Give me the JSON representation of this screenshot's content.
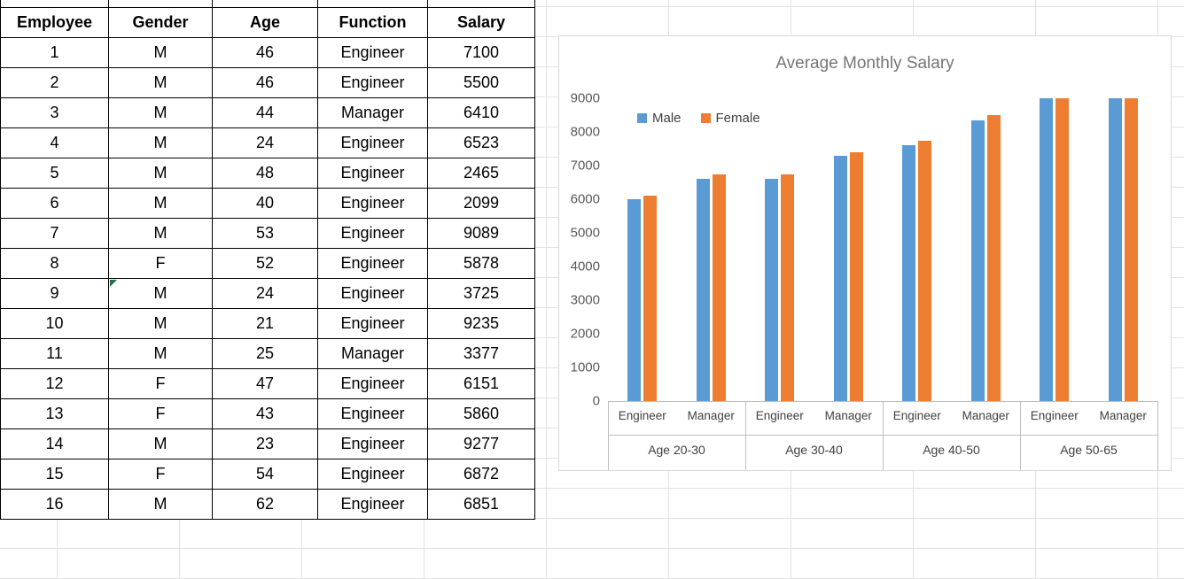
{
  "table": {
    "headers": [
      "Employee",
      "Gender",
      "Age",
      "Function",
      "Salary"
    ],
    "rows": [
      [
        "1",
        "M",
        "46",
        "Engineer",
        "7100"
      ],
      [
        "2",
        "M",
        "46",
        "Engineer",
        "5500"
      ],
      [
        "3",
        "M",
        "44",
        "Manager",
        "6410"
      ],
      [
        "4",
        "M",
        "24",
        "Engineer",
        "6523"
      ],
      [
        "5",
        "M",
        "48",
        "Engineer",
        "2465"
      ],
      [
        "6",
        "M",
        "40",
        "Engineer",
        "2099"
      ],
      [
        "7",
        "M",
        "53",
        "Engineer",
        "9089"
      ],
      [
        "8",
        "F",
        "52",
        "Engineer",
        "5878"
      ],
      [
        "9",
        "M",
        "24",
        "Engineer",
        "3725"
      ],
      [
        "10",
        "M",
        "21",
        "Engineer",
        "9235"
      ],
      [
        "11",
        "M",
        "25",
        "Manager",
        "3377"
      ],
      [
        "12",
        "F",
        "47",
        "Engineer",
        "6151"
      ],
      [
        "13",
        "F",
        "43",
        "Engineer",
        "5860"
      ],
      [
        "14",
        "M",
        "23",
        "Engineer",
        "9277"
      ],
      [
        "15",
        "F",
        "54",
        "Engineer",
        "6872"
      ],
      [
        "16",
        "M",
        "62",
        "Engineer",
        "6851"
      ]
    ],
    "flag_cell": {
      "row": 9,
      "col": 1
    }
  },
  "chart_data": {
    "type": "bar",
    "title": "Average Monthly Salary",
    "groups": [
      "Age 20-30",
      "Age 30-40",
      "Age 40-50",
      "Age 50-65"
    ],
    "categories_per_group": [
      "Engineer",
      "Manager"
    ],
    "series": [
      {
        "name": "Male",
        "color": "#5B9BD5",
        "values": [
          6000,
          6600,
          6600,
          7300,
          7600,
          8350,
          9000,
          9000
        ]
      },
      {
        "name": "Female",
        "color": "#ED7D31",
        "values": [
          6100,
          6750,
          6750,
          7400,
          7750,
          8500,
          9000,
          9000
        ]
      }
    ],
    "ylim": [
      0,
      9000
    ],
    "ytick_step": 1000,
    "xlabel": "",
    "ylabel": "",
    "legend_position": "top-left-inside",
    "grid": false
  },
  "colors": {
    "male_series": "#5B9BD5",
    "female_series": "#ED7D31",
    "table_border": "#000000",
    "chart_border": "#D9D9D9",
    "axis_text": "#595959",
    "title_text": "#757575",
    "flag_green": "#217346"
  }
}
